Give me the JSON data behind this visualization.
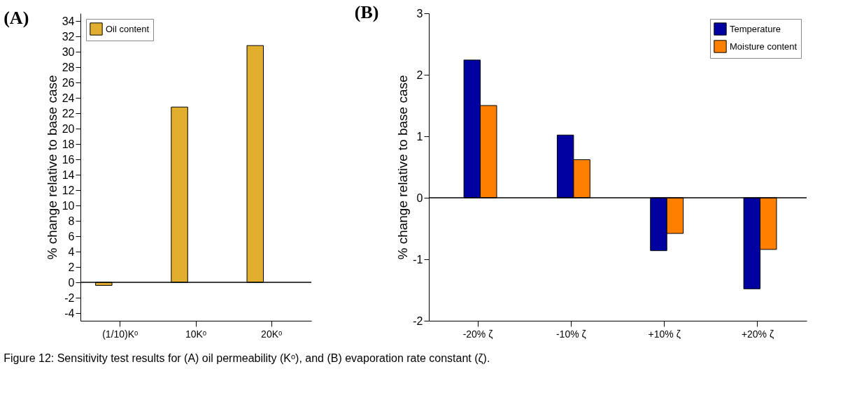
{
  "chart_data": [
    {
      "type": "bar",
      "title": "(A)",
      "ylabel": "% change relative to base case",
      "categories": [
        "(1/10)Kᵒ",
        "10Kᵒ",
        "20Kᵒ"
      ],
      "series": [
        {
          "name": "Oil content",
          "color": "#e2ae2e",
          "values": [
            -0.4,
            22.8,
            30.8
          ]
        }
      ],
      "ylim": [
        -5,
        35
      ],
      "yticks": [
        -4,
        -2,
        0,
        2,
        4,
        6,
        8,
        10,
        12,
        14,
        16,
        18,
        20,
        22,
        24,
        26,
        28,
        30,
        32,
        34
      ],
      "ref_lines": [
        {
          "axis": "y",
          "value": 0,
          "color": "#000000"
        }
      ],
      "legend": "top left",
      "grid": false
    },
    {
      "type": "bar",
      "title": "(B)",
      "ylabel": "% change relative to base case",
      "categories": [
        "-20% ζ",
        "-10% ζ",
        "+10% ζ",
        "+20% ζ"
      ],
      "series": [
        {
          "name": "Temperature",
          "color": "#0000a0",
          "values": [
            2.24,
            1.02,
            -0.86,
            -1.48
          ]
        },
        {
          "name": "Moisture content",
          "color": "#ff8000",
          "values": [
            1.5,
            0.62,
            -0.58,
            -0.84
          ]
        }
      ],
      "ylim": [
        -2,
        3
      ],
      "yticks": [
        -2,
        -1,
        0,
        1,
        2,
        3
      ],
      "ref_lines": [
        {
          "axis": "y",
          "value": 0,
          "color": "#000000"
        }
      ],
      "legend": "top right",
      "grid": false,
      "annotations": [
        "Figure 12: Sensitivity test results for (A) oil permeability (Kᵒ), and (B) evaporation rate constant (ζ)."
      ]
    }
  ]
}
